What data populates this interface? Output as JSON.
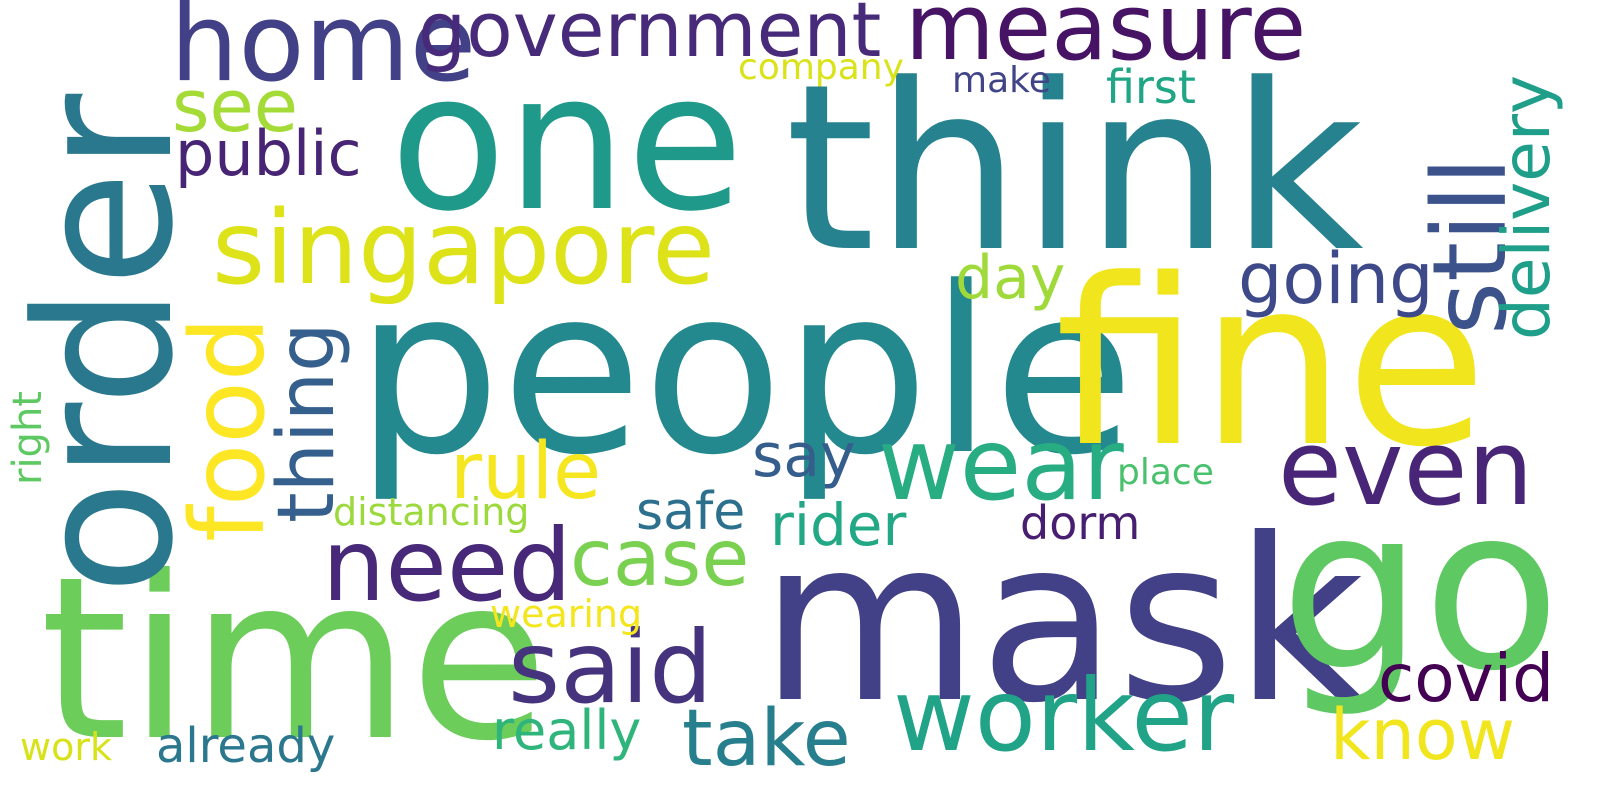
{
  "word_cloud": {
    "background": "#ffffff",
    "words": {
      "people": {
        "text": "people",
        "color": "#24898e"
      },
      "fine": {
        "text": "fine",
        "color": "#f1e51d"
      },
      "think": {
        "text": "think",
        "color": "#26828e"
      },
      "one": {
        "text": "one",
        "color": "#1f998a"
      },
      "mask": {
        "text": "mask",
        "color": "#424086"
      },
      "go": {
        "text": "go",
        "color": "#5ec962"
      },
      "time": {
        "text": "time",
        "color": "#6ccd5a"
      },
      "order": {
        "text": "order",
        "color": "#2a788e"
      },
      "measure": {
        "text": "measure",
        "color": "#471365"
      },
      "home": {
        "text": "home",
        "color": "#424086"
      },
      "government": {
        "text": "government",
        "color": "#472a7a"
      },
      "singapore": {
        "text": "singapore",
        "color": "#dde318"
      },
      "wear": {
        "text": "wear",
        "color": "#27ad81"
      },
      "even": {
        "text": "even",
        "color": "#482576"
      },
      "worker": {
        "text": "worker",
        "color": "#20a386"
      },
      "need": {
        "text": "need",
        "color": "#482878"
      },
      "said": {
        "text": "said",
        "color": "#46337e"
      },
      "rule": {
        "text": "rule",
        "color": "#f6e620"
      },
      "case": {
        "text": "case",
        "color": "#7ad151"
      },
      "going": {
        "text": "going",
        "color": "#3e4989"
      },
      "still": {
        "text": "still",
        "color": "#3b528b"
      },
      "delivery": {
        "text": "delivery",
        "color": "#1f9e89"
      },
      "food": {
        "text": "food",
        "color": "#fde725"
      },
      "thing": {
        "text": "thing",
        "color": "#355f8d"
      },
      "public": {
        "text": "public",
        "color": "#482475"
      },
      "see": {
        "text": "see",
        "color": "#a5db36"
      },
      "day": {
        "text": "day",
        "color": "#9fda3a"
      },
      "say": {
        "text": "say",
        "color": "#355e8d"
      },
      "safe": {
        "text": "safe",
        "color": "#2d708e"
      },
      "rider": {
        "text": "rider",
        "color": "#22a884"
      },
      "dorm": {
        "text": "dorm",
        "color": "#481f70"
      },
      "place": {
        "text": "place",
        "color": "#4ac16d"
      },
      "covid": {
        "text": "covid",
        "color": "#440154"
      },
      "know": {
        "text": "know",
        "color": "#f1e51d"
      },
      "take": {
        "text": "take",
        "color": "#277f8e"
      },
      "really": {
        "text": "really",
        "color": "#2fb47c"
      },
      "already": {
        "text": "already",
        "color": "#2a778e"
      },
      "work": {
        "text": "work",
        "color": "#d8e219"
      },
      "wearing": {
        "text": "wearing",
        "color": "#f4e61e"
      },
      "distancing": {
        "text": "distancing",
        "color": "#9bd93c"
      },
      "company": {
        "text": "company",
        "color": "#dae319"
      },
      "make": {
        "text": "make",
        "color": "#414487"
      },
      "first": {
        "text": "first",
        "color": "#21a685"
      },
      "right": {
        "text": "right",
        "color": "#5ec962"
      }
    }
  }
}
